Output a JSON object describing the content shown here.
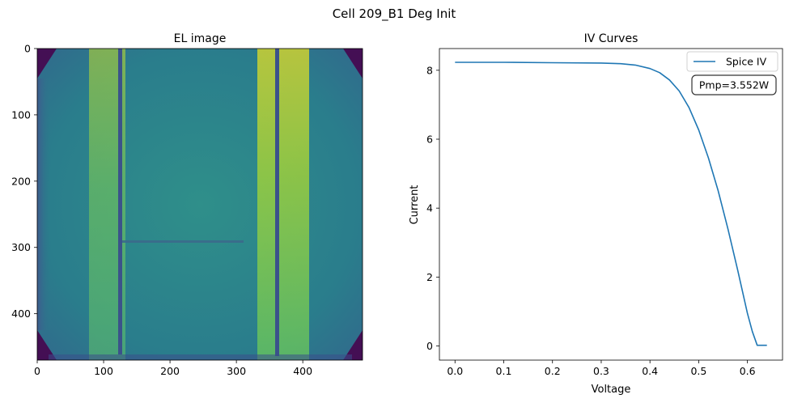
{
  "figure": {
    "suptitle": "Cell 209_B1 Deg Init"
  },
  "chart_data": [
    {
      "type": "heatmap",
      "title": "EL image",
      "xlabel": "",
      "ylabel": "",
      "xlim": [
        0,
        490
      ],
      "ylim": [
        470,
        0
      ],
      "xticks": [
        "0",
        "100",
        "200",
        "300",
        "400"
      ],
      "yticks": [
        "0",
        "100",
        "200",
        "300",
        "400"
      ],
      "colormap": "viridis",
      "features": {
        "busbars_x": [
          125,
          360
        ],
        "crack_y": 292,
        "corner_chamfer": true
      }
    },
    {
      "type": "line",
      "title": "IV Curves",
      "xlabel": "Voltage",
      "ylabel": "Current",
      "xlim": [
        -0.032,
        0.672
      ],
      "ylim": [
        -0.41,
        8.63
      ],
      "xticks": [
        "0.0",
        "0.1",
        "0.2",
        "0.3",
        "0.4",
        "0.5",
        "0.6"
      ],
      "yticks": [
        "0",
        "2",
        "4",
        "6",
        "8"
      ],
      "legend_position": "top-right",
      "series": [
        {
          "name": "Spice IV",
          "color": "#1f77b4",
          "x": [
            0.0,
            0.1,
            0.2,
            0.3,
            0.34,
            0.37,
            0.4,
            0.42,
            0.44,
            0.46,
            0.48,
            0.5,
            0.52,
            0.54,
            0.56,
            0.58,
            0.6,
            0.61,
            0.62,
            0.64
          ],
          "y": [
            8.23,
            8.23,
            8.22,
            8.21,
            8.19,
            8.15,
            8.05,
            7.93,
            7.72,
            7.4,
            6.92,
            6.27,
            5.45,
            4.5,
            3.4,
            2.2,
            0.95,
            0.42,
            0.02,
            0.02
          ]
        }
      ],
      "annotation": "Pmp=3.552W"
    }
  ]
}
